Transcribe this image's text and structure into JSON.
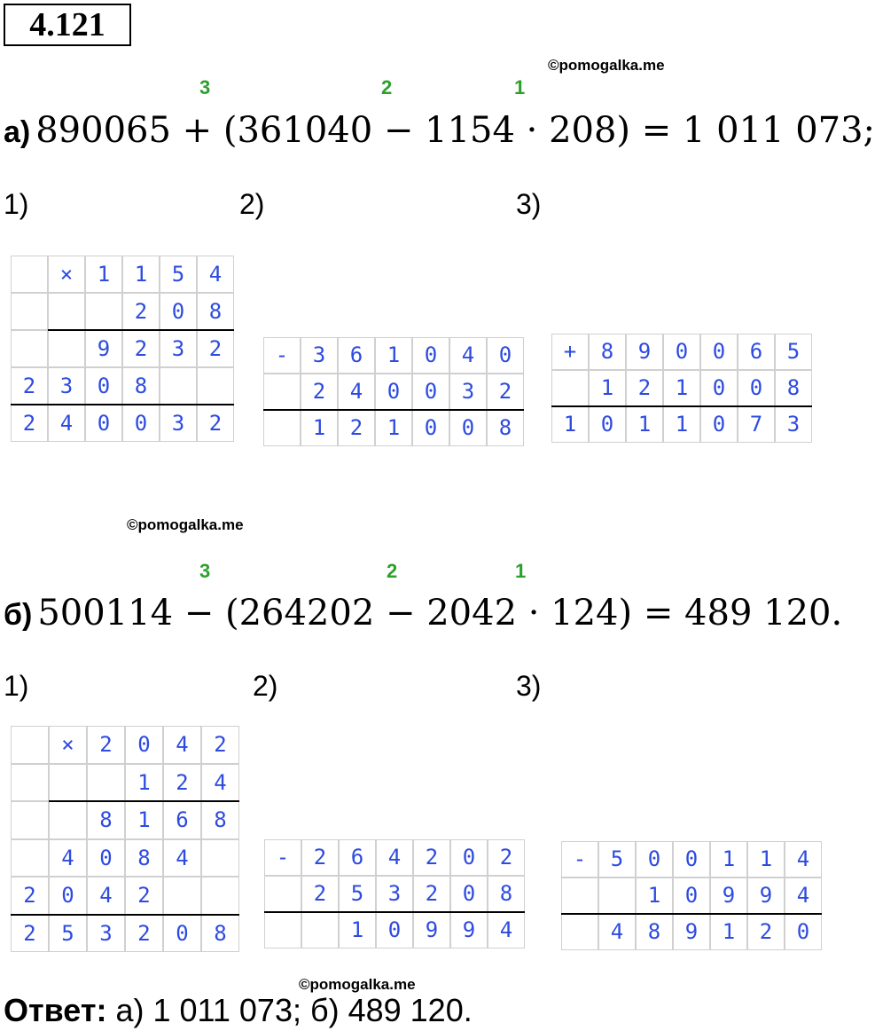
{
  "title": "4.121",
  "watermarks": [
    "©pomogalka.me",
    "©pomogalka.me",
    "©pomogalka.me"
  ],
  "parts": [
    {
      "label": "а)",
      "order_marks": [
        "3",
        "2",
        "1"
      ],
      "expression": "890065 + (361040 − 1154 · 208) = 1 011 073;",
      "step_labels": [
        "1)",
        "2)",
        "3)"
      ],
      "grids": [
        {
          "rows": [
            [
              null,
              "×",
              "1",
              "1",
              "5",
              "4"
            ],
            [
              null,
              null,
              null,
              "2",
              "0",
              "8"
            ],
            [
              null,
              null,
              "9",
              "2",
              "3",
              "2"
            ],
            [
              "2",
              "3",
              "0",
              "8",
              null,
              null
            ],
            [
              "2",
              "4",
              "0",
              "0",
              "3",
              "2"
            ]
          ]
        },
        {
          "rows": [
            [
              "-",
              "3",
              "6",
              "1",
              "0",
              "4",
              "0"
            ],
            [
              null,
              "2",
              "4",
              "0",
              "0",
              "3",
              "2"
            ],
            [
              null,
              "1",
              "2",
              "1",
              "0",
              "0",
              "8"
            ]
          ]
        },
        {
          "rows": [
            [
              "+",
              "8",
              "9",
              "0",
              "0",
              "6",
              "5"
            ],
            [
              null,
              "1",
              "2",
              "1",
              "0",
              "0",
              "8"
            ],
            [
              "1",
              "0",
              "1",
              "1",
              "0",
              "7",
              "3"
            ]
          ]
        }
      ]
    },
    {
      "label": "б)",
      "order_marks": [
        "3",
        "2",
        "1"
      ],
      "expression": "500114 − (264202 − 2042 · 124) = 489 120.",
      "step_labels": [
        "1)",
        "2)",
        "3)"
      ],
      "grids": [
        {
          "rows": [
            [
              null,
              "×",
              "2",
              "0",
              "4",
              "2"
            ],
            [
              null,
              null,
              null,
              "1",
              "2",
              "4"
            ],
            [
              null,
              null,
              "8",
              "1",
              "6",
              "8"
            ],
            [
              null,
              "4",
              "0",
              "8",
              "4",
              null
            ],
            [
              "2",
              "0",
              "4",
              "2",
              null,
              null
            ],
            [
              "2",
              "5",
              "3",
              "2",
              "0",
              "8"
            ]
          ]
        },
        {
          "rows": [
            [
              "-",
              "2",
              "6",
              "4",
              "2",
              "0",
              "2"
            ],
            [
              null,
              "2",
              "5",
              "3",
              "2",
              "0",
              "8"
            ],
            [
              null,
              null,
              "1",
              "0",
              "9",
              "9",
              "4"
            ]
          ]
        },
        {
          "rows": [
            [
              "-",
              "5",
              "0",
              "0",
              "1",
              "1",
              "4"
            ],
            [
              null,
              null,
              "1",
              "0",
              "9",
              "9",
              "4"
            ],
            [
              null,
              "4",
              "8",
              "9",
              "1",
              "2",
              "0"
            ]
          ]
        }
      ]
    }
  ],
  "answer": {
    "label": "Ответ:",
    "text": "а) 1 011 073;  б) 489 120."
  }
}
